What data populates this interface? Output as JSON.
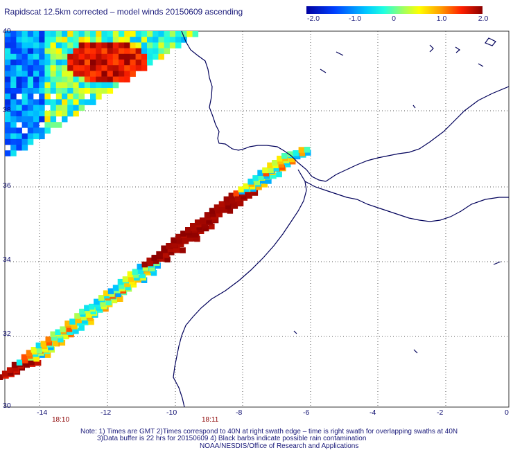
{
  "title": "Rapidscat 12.5km corrected – model winds 20150609 ascending",
  "colorbar": {
    "ticks": [
      "-2.0",
      "-1.0",
      "0",
      "1.0",
      "2.0"
    ],
    "range": [
      -2.0,
      2.0
    ]
  },
  "axes": {
    "y_ticks": [
      "40",
      "38",
      "36",
      "34",
      "32",
      "30"
    ],
    "x_ticks": [
      "-14",
      "-12",
      "-10",
      "-8",
      "-6",
      "-4",
      "-2",
      "0"
    ],
    "lat_range": [
      30,
      40
    ],
    "lon_range": [
      -15,
      0
    ]
  },
  "time_labels": [
    "18:10",
    "18:11"
  ],
  "notes": [
    "Note: 1) Times are GMT 2)Times correspond to 40N at right swath edge – time is right swath for overlapping swaths at 40N",
    "3)Data buffer is 22 hrs for 20150609 4) Black barbs indicate possible rain contamination",
    "NOAA/NESDIS/Office of Research and Applications"
  ],
  "colors": {
    "coastline": "#00005a",
    "grid": "#555555",
    "text": "#1a1a7a",
    "time_label": "#8b0000"
  }
}
